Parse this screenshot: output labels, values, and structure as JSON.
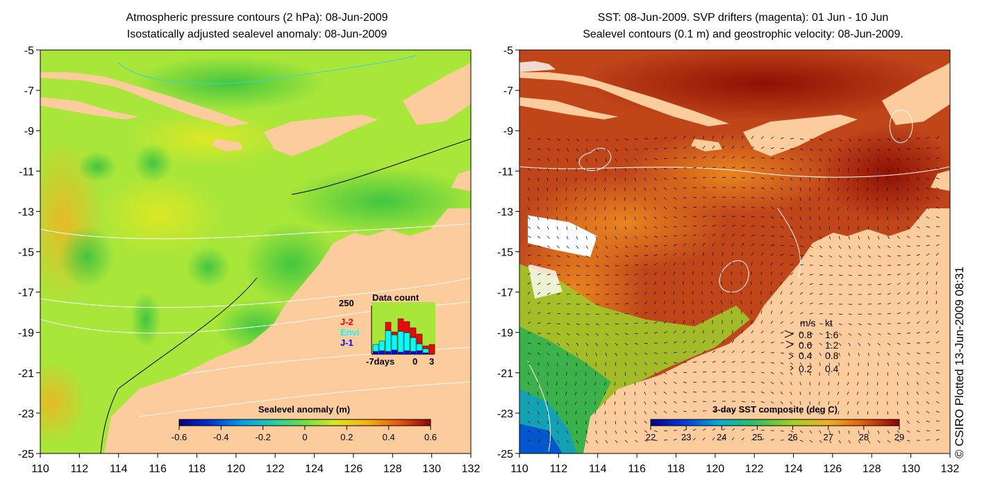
{
  "left_map": {
    "title_line1": "Atmospheric pressure contours (2 hPa): 08-Jun-2009",
    "title_line2": "Isostatically adjusted sealevel anomaly: 08-Jun-2009",
    "colorbar": {
      "label": "Sealevel anomaly (m)",
      "ticks": [
        "-0.6",
        "-0.4",
        "-0.2",
        "0",
        "0.2",
        "0.4",
        "0.6"
      ],
      "min": -0.6,
      "max": 0.6
    },
    "data_count": {
      "title": "Data count",
      "y_max_label": "250",
      "x_labels": [
        "-7days",
        "0",
        "3"
      ],
      "series": [
        {
          "name": "J-2",
          "color": "#ff0000"
        },
        {
          "name": "Envi",
          "color": "#00ffff"
        },
        {
          "name": "J-1",
          "color": "#0000ff"
        }
      ]
    }
  },
  "right_map": {
    "title_line1": "SST: 08-Jun-2009. SVP drifters (magenta): 01 Jun - 10 Jun",
    "title_line2": "Sealevel contours (0.1 m) and geostrophic velocity: 08-Jun-2009.",
    "colorbar": {
      "label": "3-day SST composite (deg C)",
      "ticks": [
        "22",
        "23",
        "24",
        "25",
        "26",
        "27",
        "28",
        "29"
      ],
      "min": 22,
      "max": 29
    },
    "velocity_legend": {
      "header_ms": "m/s",
      "header_kt": "kt",
      "rows": [
        {
          "ms": "0.8",
          "kt": "1.6"
        },
        {
          "ms": "0.6",
          "kt": "1.2"
        },
        {
          "ms": "0.4",
          "kt": "0.8"
        },
        {
          "ms": "0.2",
          "kt": "0.4"
        }
      ]
    }
  },
  "axes": {
    "y_labels": [
      "-5",
      "-7",
      "-9",
      "-11",
      "-13",
      "-15",
      "-17",
      "-19",
      "-21",
      "-23",
      "-25"
    ],
    "x_labels": [
      "110",
      "112",
      "114",
      "116",
      "118",
      "120",
      "122",
      "124",
      "126",
      "128",
      "130",
      "132"
    ]
  },
  "credit": "© CSIRO Plotted 13-Jun-2009 08:31",
  "colors": {
    "land": "#fccc9c",
    "sealevel_bg": "#a9e63a",
    "sst_bg": "#c0461a"
  }
}
